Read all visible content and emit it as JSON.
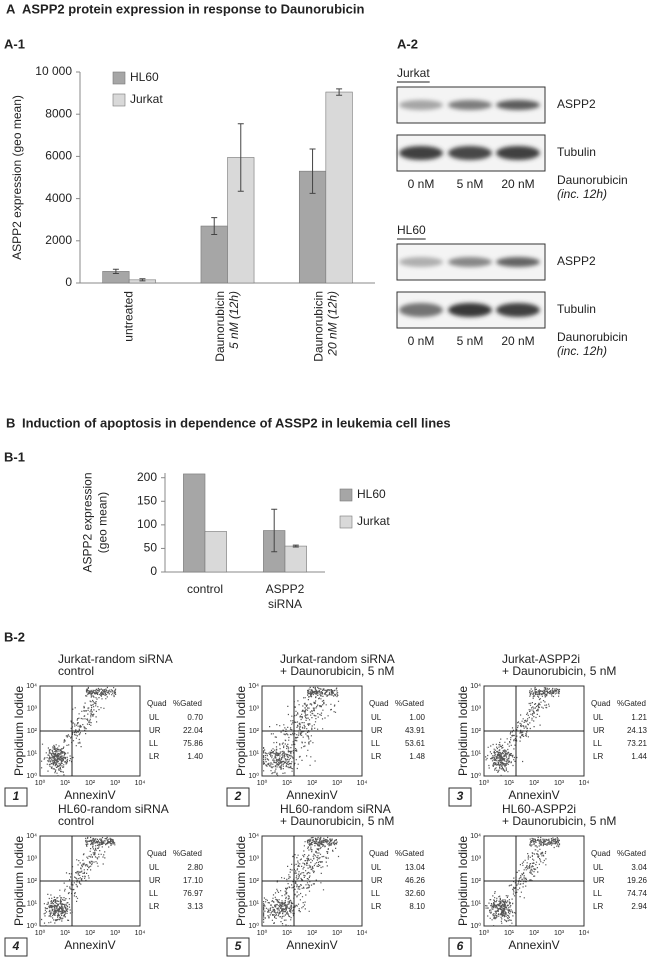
{
  "section_a": {
    "label": "A",
    "title": "ASPP2 protein expression in response to Daunorubicin"
  },
  "section_b": {
    "label": "B",
    "title": "Induction of apoptosis in dependence of ASSP2 in leukemia cell lines"
  },
  "chart_data": [
    {
      "type": "bar",
      "panel_label": "A-1",
      "y_label": [
        "ASPP2 expression (geo mean)"
      ],
      "categories": [
        [
          "untreated"
        ],
        [
          "Daunorubicin",
          "5 nM (12h)"
        ],
        [
          "Daunorubicin",
          "20 nM (12h)"
        ]
      ],
      "x_label_rotation": 90,
      "series": [
        {
          "name": "HL60",
          "color": "#a6a6a6",
          "values": [
            550,
            2700,
            5300
          ],
          "errors": [
            100,
            400,
            1050
          ]
        },
        {
          "name": "Jurkat",
          "color": "#d9d9d9",
          "values": [
            150,
            5950,
            9050
          ],
          "errors": [
            50,
            1600,
            150
          ]
        }
      ],
      "ylim": [
        0,
        10000
      ],
      "yticks": [
        0,
        2000,
        4000,
        6000,
        8000,
        {
          "value": 10000,
          "label": "10 000"
        }
      ],
      "legend": "upper left"
    },
    {
      "type": "bar",
      "panel_label": "B-1",
      "y_label": [
        "ASPP2 expression",
        "(geo mean)"
      ],
      "categories": [
        [
          "control"
        ],
        [
          "ASPP2",
          "siRNA"
        ]
      ],
      "x_label_rotation": 0,
      "series": [
        {
          "name": "HL60",
          "color": "#a6a6a6",
          "values": [
            208,
            88
          ],
          "errors": [
            null,
            45
          ]
        },
        {
          "name": "Jurkat",
          "color": "#d9d9d9",
          "values": [
            86,
            55
          ],
          "errors": [
            null,
            2
          ]
        }
      ],
      "ylim": [
        0,
        210
      ],
      "yticks": [
        0,
        50,
        100,
        150,
        200
      ],
      "legend": "right"
    }
  ],
  "blots": {
    "label": "A-2",
    "groups": [
      {
        "cell_line": "Jurkat",
        "rows": [
          "ASPP2",
          "Tubulin"
        ],
        "lanes": [
          "0 nM",
          "5 nM",
          "20 nM"
        ],
        "treatment": "Daunorubicin",
        "treatment_note": "(inc. 12h)"
      },
      {
        "cell_line": "HL60",
        "rows": [
          "ASPP2",
          "Tubulin"
        ],
        "lanes": [
          "0 nM",
          "5 nM",
          "20 nM"
        ],
        "treatment": "Daunorubicin",
        "treatment_note": "(inc. 12h)"
      }
    ]
  },
  "flow": {
    "label": "B-2",
    "x_label": "AnnexinV",
    "y_label": "Propidium Iodide",
    "axis_ticks": [
      "10⁰",
      "10¹",
      "10²",
      "10³",
      "10⁴"
    ],
    "table_header": [
      "Quad",
      "%Gated"
    ],
    "quadrants": [
      "UL",
      "UR",
      "LL",
      "LR"
    ],
    "panels": [
      {
        "number": "1",
        "title": [
          "Jurkat-random siRNA",
          "control"
        ],
        "gated": [
          "0.70",
          "22.04",
          "75.86",
          "1.40"
        ]
      },
      {
        "number": "2",
        "title": [
          "Jurkat-random siRNA",
          "+ Daunorubicin, 5 nM"
        ],
        "gated": [
          "1.00",
          "43.91",
          "53.61",
          "1.48"
        ]
      },
      {
        "number": "3",
        "title": [
          "Jurkat-ASPP2i",
          "+ Daunorubicin, 5 nM"
        ],
        "gated": [
          "1.21",
          "24.13",
          "73.21",
          "1.44"
        ]
      },
      {
        "number": "4",
        "title": [
          "HL60-random siRNA",
          "control"
        ],
        "gated": [
          "2.80",
          "17.10",
          "76.97",
          "3.13"
        ]
      },
      {
        "number": "5",
        "title": [
          "HL60-random siRNA",
          "+ Daunorubicin, 5 nM"
        ],
        "gated": [
          "13.04",
          "46.26",
          "32.60",
          "8.10"
        ]
      },
      {
        "number": "6",
        "title": [
          "HL60-ASPP2i",
          "+ Daunorubicin, 5 nM"
        ],
        "gated": [
          "3.04",
          "19.26",
          "74.74",
          "2.94"
        ]
      }
    ]
  }
}
